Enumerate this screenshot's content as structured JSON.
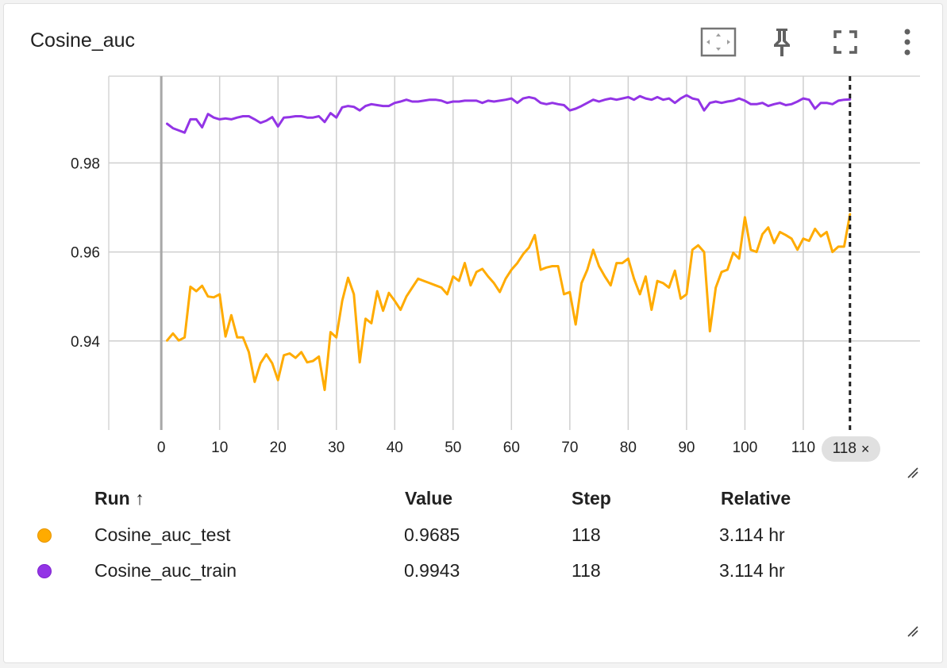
{
  "card": {
    "title": "Cosine_auc"
  },
  "toolbar": {
    "icons": [
      "fit-domain-icon",
      "pin-icon",
      "fullscreen-icon",
      "more-vert-icon"
    ]
  },
  "step_chip": {
    "label": "118",
    "close_glyph": "×"
  },
  "table": {
    "headers": {
      "run": "Run ↑",
      "value": "Value",
      "step": "Step",
      "relative": "Relative"
    },
    "rows": [
      {
        "color": "#ffab00",
        "run": "Cosine_auc_test",
        "value": "0.9685",
        "step": "118",
        "relative": "3.114 hr"
      },
      {
        "color": "#9334e6",
        "run": "Cosine_auc_train",
        "value": "0.9943",
        "step": "118",
        "relative": "3.114 hr"
      }
    ]
  },
  "chart_data": {
    "type": "line",
    "xlim": [
      -9,
      130
    ],
    "ylim": [
      0.92,
      0.9995
    ],
    "x_ticks": [
      0,
      10,
      20,
      30,
      40,
      50,
      60,
      70,
      80,
      90,
      100,
      110
    ],
    "x_tick_labels": [
      "0",
      "10",
      "20",
      "30",
      "40",
      "50",
      "60",
      "70",
      "80",
      "90",
      "100",
      "110"
    ],
    "y_ticks": [
      0.94,
      0.96,
      0.98
    ],
    "y_tick_labels": [
      "0.94",
      "0.96",
      "0.98"
    ],
    "grid": true,
    "cursor_step": 118,
    "series": [
      {
        "name": "Cosine_auc_test",
        "color": "#ffab00",
        "x": [
          1,
          2,
          3,
          4,
          5,
          6,
          7,
          8,
          9,
          10,
          11,
          12,
          13,
          14,
          15,
          16,
          17,
          18,
          19,
          20,
          21,
          22,
          23,
          24,
          25,
          26,
          27,
          28,
          29,
          30,
          31,
          32,
          33,
          34,
          35,
          36,
          37,
          38,
          39,
          40,
          41,
          42,
          43,
          44,
          45,
          46,
          47,
          48,
          49,
          50,
          51,
          52,
          53,
          54,
          55,
          56,
          57,
          58,
          59,
          60,
          61,
          62,
          63,
          64,
          65,
          66,
          67,
          68,
          69,
          70,
          71,
          72,
          73,
          74,
          75,
          76,
          77,
          78,
          79,
          80,
          81,
          82,
          83,
          84,
          85,
          86,
          87,
          88,
          89,
          90,
          91,
          92,
          93,
          94,
          95,
          96,
          97,
          98,
          99,
          100,
          101,
          102,
          103,
          104,
          105,
          106,
          107,
          108,
          109,
          110,
          111,
          112,
          113,
          114,
          115,
          116,
          117,
          118
        ],
        "y": [
          0.9401,
          0.9417,
          0.9401,
          0.9408,
          0.9522,
          0.9512,
          0.9524,
          0.95,
          0.9498,
          0.9505,
          0.941,
          0.9458,
          0.9408,
          0.9408,
          0.9375,
          0.9308,
          0.935,
          0.937,
          0.935,
          0.9312,
          0.9368,
          0.9372,
          0.9362,
          0.9375,
          0.9352,
          0.9355,
          0.9365,
          0.929,
          0.942,
          0.9408,
          0.949,
          0.9542,
          0.9505,
          0.9352,
          0.945,
          0.944,
          0.9512,
          0.9468,
          0.9508,
          0.949,
          0.947,
          0.95,
          0.952,
          0.954,
          0.9535,
          0.953,
          0.9525,
          0.952,
          0.9505,
          0.9545,
          0.9535,
          0.9575,
          0.9525,
          0.9555,
          0.9562,
          0.9545,
          0.953,
          0.951,
          0.954,
          0.956,
          0.9575,
          0.9595,
          0.961,
          0.9638,
          0.956,
          0.9565,
          0.9568,
          0.9568,
          0.9505,
          0.951,
          0.9437,
          0.953,
          0.956,
          0.9605,
          0.9568,
          0.9545,
          0.9525,
          0.9575,
          0.9575,
          0.9585,
          0.954,
          0.9505,
          0.9545,
          0.947,
          0.9535,
          0.953,
          0.952,
          0.9558,
          0.9495,
          0.9505,
          0.9605,
          0.9615,
          0.96,
          0.9422,
          0.952,
          0.9555,
          0.956,
          0.9598,
          0.9585,
          0.9678,
          0.9605,
          0.96,
          0.964,
          0.9655,
          0.962,
          0.9645,
          0.9638,
          0.963,
          0.9605,
          0.963,
          0.9625,
          0.9652,
          0.9635,
          0.9645,
          0.96,
          0.9612,
          0.9612,
          0.9685
        ]
      },
      {
        "name": "Cosine_auc_train",
        "color": "#9334e6",
        "x": [
          1,
          2,
          3,
          4,
          5,
          6,
          7,
          8,
          9,
          10,
          11,
          12,
          13,
          14,
          15,
          16,
          17,
          18,
          19,
          20,
          21,
          22,
          23,
          24,
          25,
          26,
          27,
          28,
          29,
          30,
          31,
          32,
          33,
          34,
          35,
          36,
          37,
          38,
          39,
          40,
          41,
          42,
          43,
          44,
          45,
          46,
          47,
          48,
          49,
          50,
          51,
          52,
          53,
          54,
          55,
          56,
          57,
          58,
          59,
          60,
          61,
          62,
          63,
          64,
          65,
          66,
          67,
          68,
          69,
          70,
          71,
          72,
          73,
          74,
          75,
          76,
          77,
          78,
          79,
          80,
          81,
          82,
          83,
          84,
          85,
          86,
          87,
          88,
          89,
          90,
          91,
          92,
          93,
          94,
          95,
          96,
          97,
          98,
          99,
          100,
          101,
          102,
          103,
          104,
          105,
          106,
          107,
          108,
          109,
          110,
          111,
          112,
          113,
          114,
          115,
          116,
          117,
          118
        ],
        "y": [
          0.9888,
          0.9878,
          0.9873,
          0.9868,
          0.9898,
          0.9898,
          0.988,
          0.991,
          0.9902,
          0.9898,
          0.99,
          0.9898,
          0.9902,
          0.9905,
          0.9905,
          0.9898,
          0.989,
          0.9895,
          0.9903,
          0.9882,
          0.9902,
          0.9903,
          0.9905,
          0.9905,
          0.9902,
          0.9902,
          0.9905,
          0.9892,
          0.9912,
          0.9902,
          0.9925,
          0.9928,
          0.9926,
          0.9918,
          0.9928,
          0.9932,
          0.993,
          0.9928,
          0.9928,
          0.9935,
          0.9938,
          0.9942,
          0.9938,
          0.9938,
          0.994,
          0.9942,
          0.9942,
          0.994,
          0.9935,
          0.9938,
          0.9938,
          0.994,
          0.994,
          0.994,
          0.9935,
          0.994,
          0.9938,
          0.994,
          0.9942,
          0.9945,
          0.9935,
          0.9945,
          0.9948,
          0.9945,
          0.9935,
          0.9932,
          0.9935,
          0.9932,
          0.993,
          0.9918,
          0.9922,
          0.9928,
          0.9935,
          0.9942,
          0.9938,
          0.9942,
          0.9945,
          0.9942,
          0.9945,
          0.9948,
          0.9942,
          0.995,
          0.9945,
          0.9942,
          0.9948,
          0.9942,
          0.9945,
          0.9935,
          0.9945,
          0.9952,
          0.9945,
          0.9942,
          0.9918,
          0.9935,
          0.9938,
          0.9935,
          0.9938,
          0.994,
          0.9945,
          0.994,
          0.9932,
          0.9932,
          0.9935,
          0.9928,
          0.9932,
          0.9935,
          0.993,
          0.9932,
          0.9938,
          0.9945,
          0.9942,
          0.9922,
          0.9935,
          0.9935,
          0.9932,
          0.994,
          0.9942,
          0.9943
        ]
      }
    ]
  }
}
